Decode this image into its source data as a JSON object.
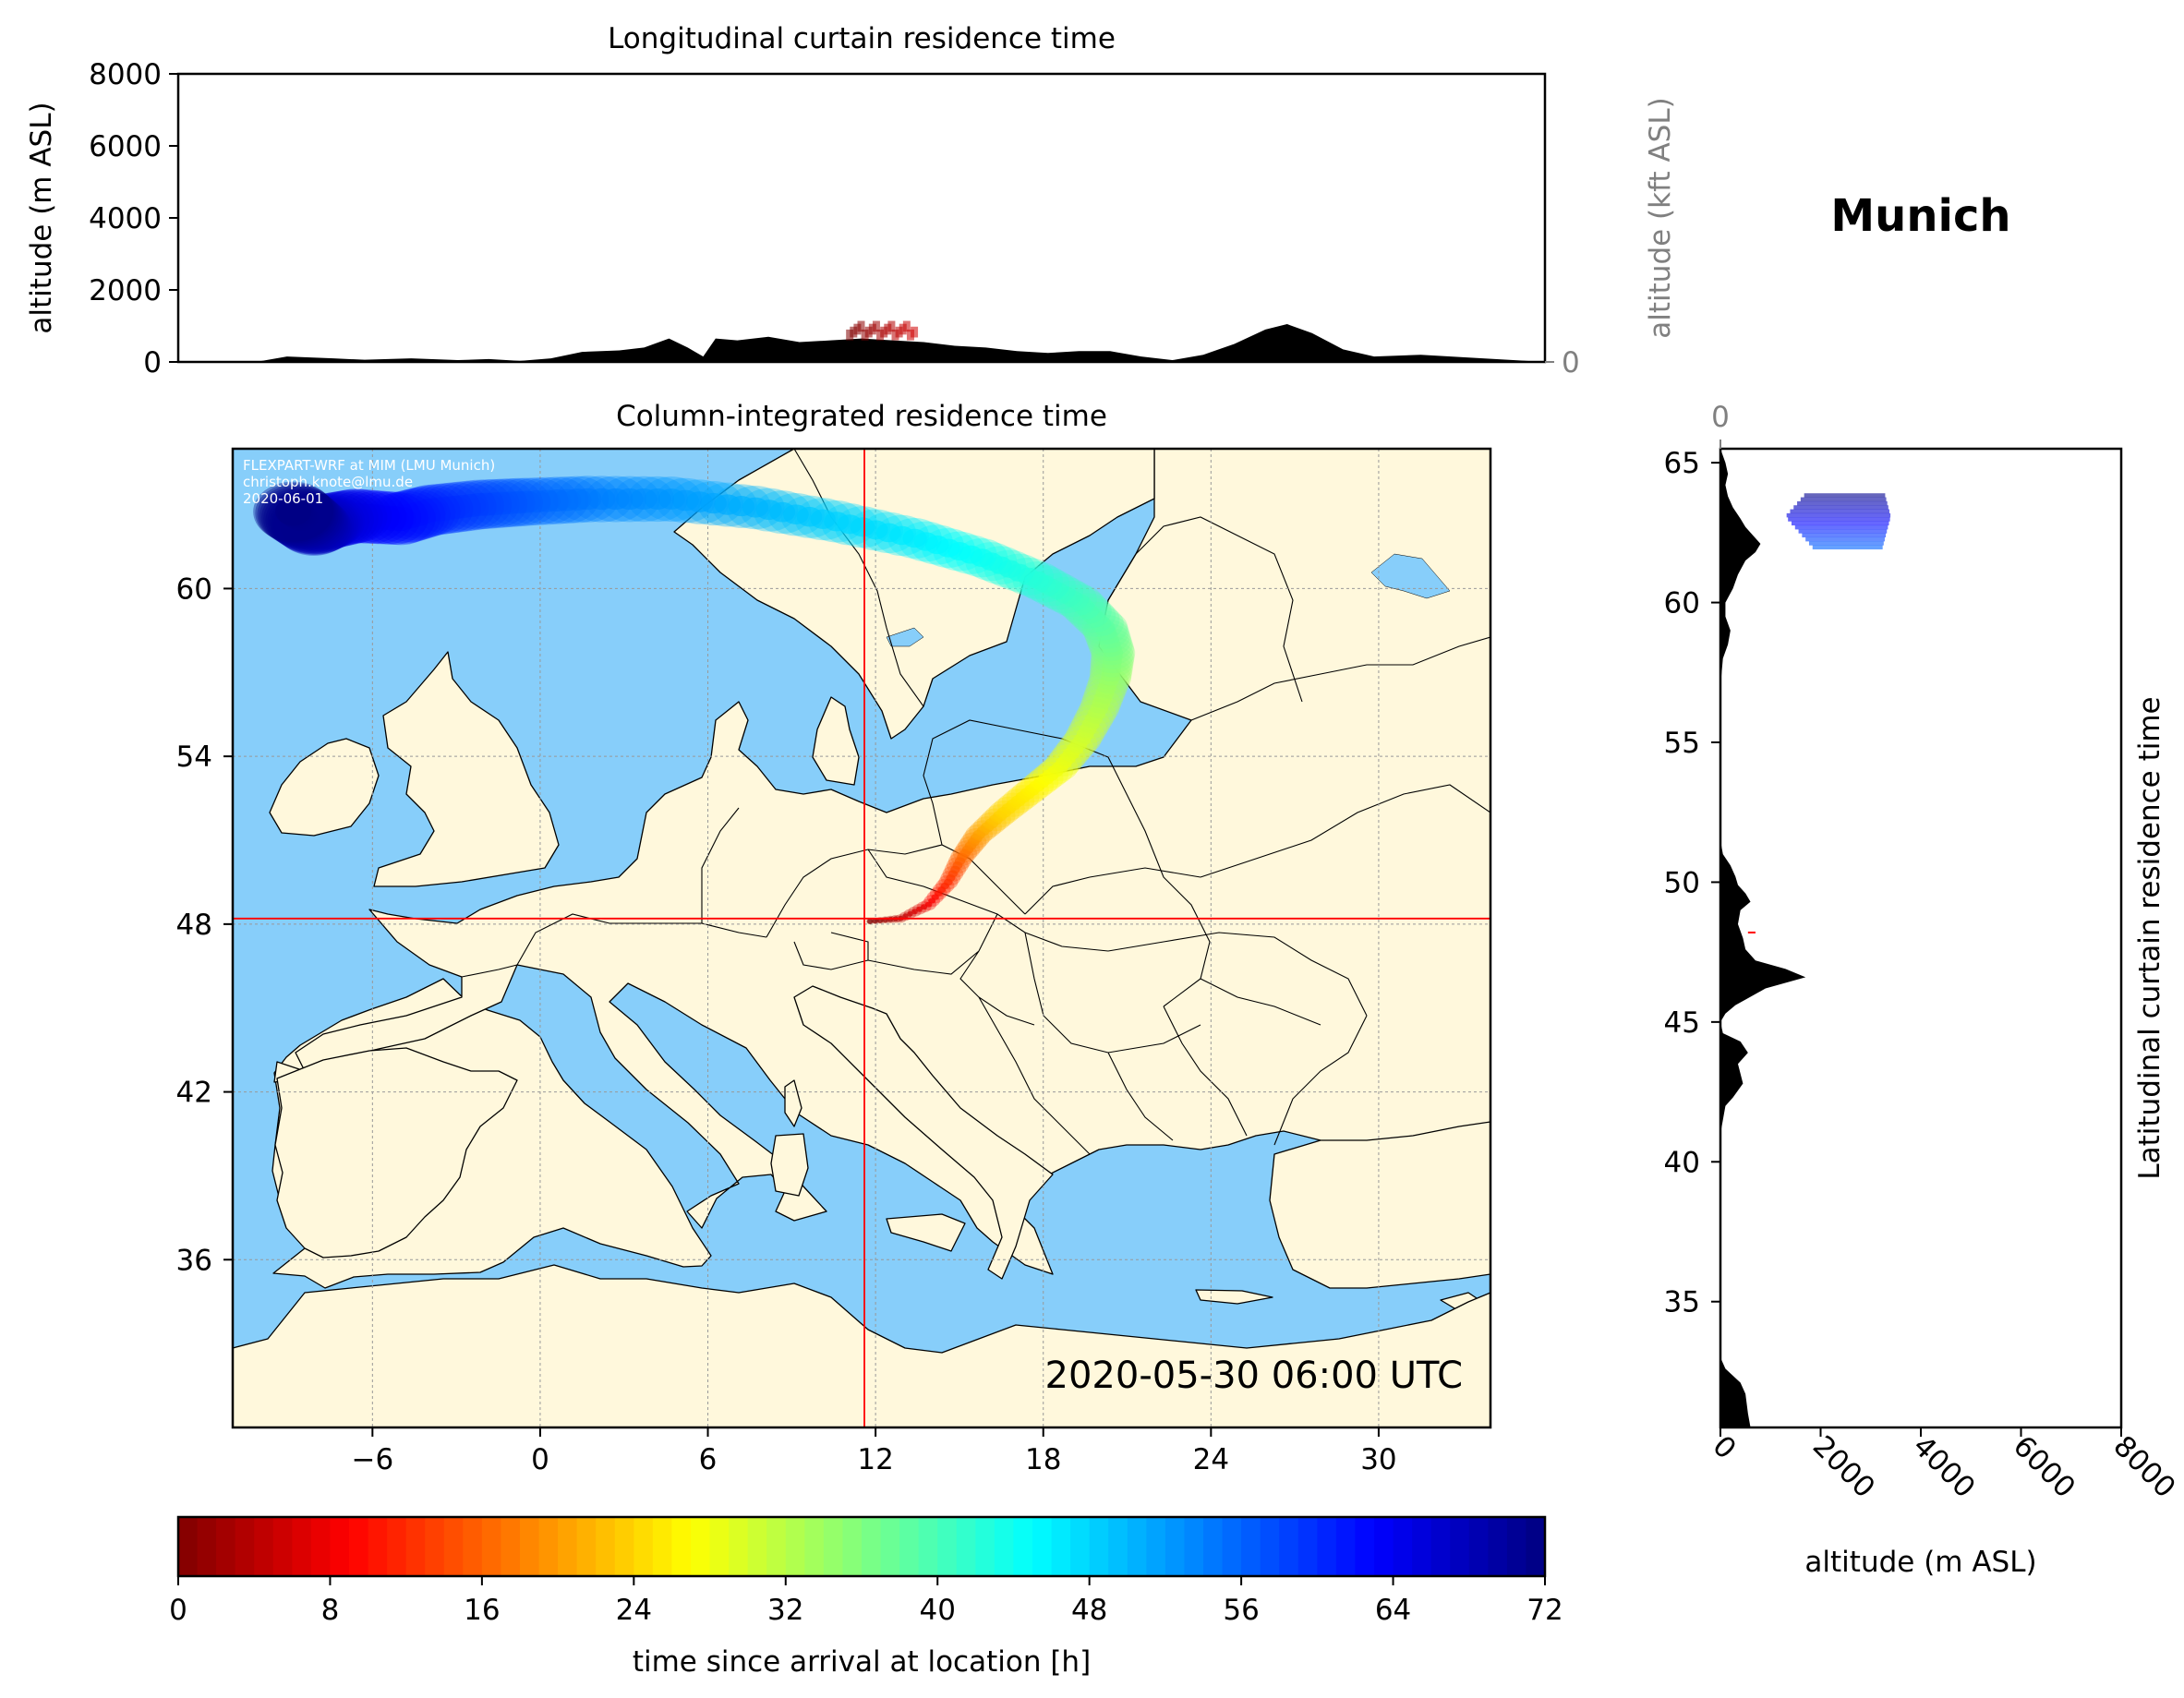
{
  "location_title": "Munich",
  "colors": {
    "ocean": "#87CEFA",
    "land": "#FFF8DC",
    "marker": "#ff0000",
    "terrain": "#000000",
    "secondary_axis": "#808080"
  },
  "chart_data": [
    {
      "type": "area",
      "title": "Longitudinal curtain residence time",
      "xlabel": "",
      "ylabel": "altitude (m ASL)",
      "ylim": [
        0,
        8000
      ],
      "yticks": [
        0,
        2000,
        4000,
        6000,
        8000
      ],
      "secondary_ylabel": "altitude (kft ASL)",
      "secondary_ylim": [
        0,
        100
      ],
      "secondary_yticks": [
        0,
        50,
        100
      ],
      "xlim": [
        -10,
        34
      ],
      "grid": true,
      "terrain": {
        "x": [
          -10,
          -7.5,
          -6.5,
          -5,
          -4,
          -2.5,
          -1,
          0,
          1,
          2,
          3,
          4.2,
          5,
          5.8,
          6.4,
          6.9,
          7.3,
          8,
          9,
          10,
          11,
          12,
          13,
          14,
          15,
          16,
          17,
          18,
          19,
          20,
          21,
          22,
          23,
          24,
          25,
          25.7,
          26.5,
          27.5,
          28.5,
          30,
          32,
          34
        ],
        "y": [
          0,
          0,
          150,
          100,
          60,
          100,
          50,
          80,
          30,
          100,
          280,
          320,
          400,
          650,
          400,
          150,
          650,
          600,
          700,
          550,
          600,
          650,
          600,
          550,
          450,
          400,
          300,
          250,
          300,
          300,
          150,
          50,
          200,
          500,
          900,
          1050,
          800,
          350,
          150,
          200,
          100,
          0
        ]
      },
      "residence": {
        "x_range": [
          11.5,
          13.7
        ],
        "alt_range": [
          400,
          1000
        ],
        "time_h": [
          0,
          6
        ]
      }
    },
    {
      "type": "heatmap",
      "title": "Column-integrated residence time",
      "watermark": [
        "FLEXPART-WRF at MIM (LMU Munich)",
        "christoph.knote@lmu.de",
        "2020-06-01"
      ],
      "timestamp": "2020-05-30 06:00 UTC",
      "xlim": [
        -11,
        34
      ],
      "ylim": [
        30,
        65
      ],
      "xticks": [
        -6,
        0,
        6,
        12,
        18,
        24,
        30
      ],
      "yticks": [
        36,
        42,
        48,
        54,
        60
      ],
      "grid": true,
      "receptor": {
        "lon": 11.6,
        "lat": 48.2
      },
      "trajectory": {
        "lon": [
          11.8,
          12.9,
          13.9,
          14.6,
          15.1,
          15.7,
          16.6,
          17.6,
          18.6,
          19.4,
          20,
          20.4,
          20.5,
          20.2,
          19.3,
          17.8,
          15.8,
          13.4,
          10.6,
          7.7,
          4.7,
          1.7,
          -0.5,
          -2.2,
          -3.9,
          -5,
          -6.6,
          -7.6,
          -8.1,
          -8.5,
          -8.9
        ],
        "lat": [
          48.1,
          48.2,
          48.7,
          49.5,
          50.4,
          51.2,
          52,
          52.8,
          53.6,
          54.6,
          55.7,
          56.8,
          57.7,
          58.6,
          59.5,
          60.3,
          61.1,
          61.8,
          62.4,
          62.9,
          63.2,
          63.2,
          63.1,
          63,
          62.8,
          62.5,
          62.6,
          62.4,
          62.2,
          62.5,
          62.8
        ],
        "time_h": [
          0,
          4,
          8,
          12,
          16,
          20,
          24,
          26,
          28,
          30,
          32,
          34,
          36,
          38,
          40,
          42,
          44,
          46,
          48,
          50,
          52,
          54,
          56,
          58,
          60,
          62,
          64,
          66,
          68,
          70,
          72
        ]
      }
    },
    {
      "type": "area",
      "title": "Latitudinal curtain residence time",
      "xlabel": "altitude (m ASL)",
      "xlim": [
        0,
        8000
      ],
      "xticks": [
        0,
        2000,
        4000,
        6000,
        8000
      ],
      "secondary_xlim": [
        0,
        100
      ],
      "secondary_xticks": [
        0,
        50,
        100
      ],
      "ylim": [
        30.5,
        65.5
      ],
      "yticks": [
        35,
        40,
        45,
        50,
        55,
        60,
        65
      ],
      "grid": true,
      "terrain": {
        "lat": [
          30.5,
          31,
          31.7,
          32.1,
          32.6,
          33,
          40,
          41,
          42,
          42.3,
          42.8,
          43.5,
          43.9,
          44.3,
          44.6,
          45,
          45.3,
          45.6,
          45.8,
          46.2,
          46.6,
          46.9,
          47.2,
          47.6,
          48,
          48.5,
          49,
          49.3,
          49.6,
          49.9,
          50.2,
          50.6,
          51,
          51.5,
          52,
          52.5,
          53,
          54,
          55,
          56,
          57,
          58,
          58.5,
          59,
          59.5,
          60,
          60.5,
          61,
          61.5,
          61.8,
          62.1,
          62.4,
          62.7,
          63,
          63.4,
          63.8,
          64.2,
          64.6,
          65,
          65.5
        ],
        "alt": [
          600,
          550,
          500,
          400,
          100,
          0,
          0,
          0,
          100,
          250,
          450,
          350,
          550,
          400,
          50,
          0,
          100,
          300,
          500,
          900,
          1700,
          1300,
          700,
          500,
          450,
          350,
          400,
          600,
          500,
          350,
          300,
          200,
          50,
          0,
          0,
          0,
          0,
          0,
          0,
          0,
          0,
          50,
          150,
          200,
          100,
          100,
          250,
          350,
          500,
          700,
          800,
          650,
          500,
          400,
          250,
          150,
          100,
          150,
          100,
          0
        ]
      },
      "residence": {
        "lat_range": [
          61.9,
          63.9
        ],
        "alt_range": [
          1300,
          3400
        ],
        "time_h": [
          56,
          72
        ]
      }
    }
  ],
  "colorbar": {
    "label": "time since arrival at location [h]",
    "colormap": "jet_r",
    "min": 0,
    "max": 72,
    "ticks": [
      0,
      8,
      16,
      24,
      32,
      40,
      48,
      56,
      64,
      72
    ]
  }
}
